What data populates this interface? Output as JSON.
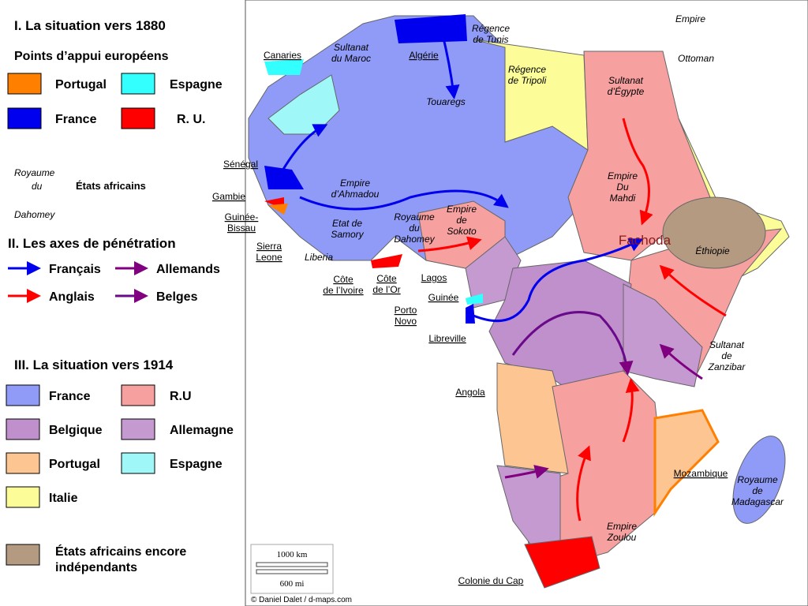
{
  "legend": {
    "situation_1880": {
      "title": "I. La situation vers 1880",
      "subtitle": "Points d’appui européens",
      "items": [
        {
          "label": "Portugal",
          "color": "#ff8000"
        },
        {
          "label": "Espagne",
          "color": "#33ffff"
        },
        {
          "label": "France",
          "color": "#0000ee"
        },
        {
          "label": "R. U.",
          "color": "#ff0000"
        }
      ],
      "african_states": {
        "example": [
          "Royaume",
          "du",
          "Dahomey"
        ],
        "label": "États africains"
      }
    },
    "axes": {
      "title": "II. Les axes de pénétration",
      "items": [
        {
          "label": "Français",
          "color": "#0000ee"
        },
        {
          "label": "Allemands",
          "color": "#800080"
        },
        {
          "label": "Anglais",
          "color": "#ff0000"
        },
        {
          "label": "Belges",
          "color": "#6a0a8a"
        }
      ]
    },
    "situation_1914": {
      "title": "III. La situation vers 1914",
      "items": [
        {
          "label": "France",
          "color": "#8f9bf7"
        },
        {
          "label": "R.U",
          "color": "#f7a0a0"
        },
        {
          "label": "Belgique",
          "color": "#c090cc"
        },
        {
          "label": "Allemagne",
          "color": "#c49ad0"
        },
        {
          "label": "Portugal",
          "color": "#fcc592"
        },
        {
          "label": "Espagne",
          "color": "#9ff7f7"
        },
        {
          "label": "Italie",
          "color": "#fcfc99"
        }
      ],
      "independent": {
        "lines": [
          "États africains encore",
          "indépendants"
        ],
        "color": "#b59a82"
      }
    }
  },
  "map_labels": [
    {
      "lines": [
        "Empire"
      ]
    },
    {
      "lines": [
        "Ottoman"
      ]
    },
    {
      "lines": [
        "Régence",
        "de Tunis"
      ]
    },
    {
      "lines": [
        "Sultanat",
        "du Maroc"
      ]
    },
    {
      "lines": [
        "Canaries"
      ]
    },
    {
      "lines": [
        "Algérie"
      ]
    },
    {
      "lines": [
        "Régence",
        "de Tripoli"
      ]
    },
    {
      "lines": [
        "Sultanat",
        "d’Égypte"
      ]
    },
    {
      "lines": [
        "Touaregs"
      ]
    },
    {
      "lines": [
        "Sénégal"
      ]
    },
    {
      "lines": [
        "Empire",
        "d’Ahmadou"
      ]
    },
    {
      "lines": [
        "Gambie"
      ]
    },
    {
      "lines": [
        "Guinée-",
        "Bissau"
      ]
    },
    {
      "lines": [
        "Etat de",
        "Samory"
      ]
    },
    {
      "lines": [
        "Royaume",
        "du",
        "Dahomey"
      ]
    },
    {
      "lines": [
        "Empire",
        "de",
        "Sokoto"
      ]
    },
    {
      "lines": [
        "Empire",
        "Du",
        "Mahdi"
      ]
    },
    {
      "lines": [
        "Fachoda"
      ]
    },
    {
      "lines": [
        "Éthiopie"
      ]
    },
    {
      "lines": [
        "Sierra",
        "Leone"
      ]
    },
    {
      "lines": [
        "Liberia"
      ]
    },
    {
      "lines": [
        "Côte",
        "de l’Ivoire"
      ]
    },
    {
      "lines": [
        "Côte",
        "de l’Or"
      ]
    },
    {
      "lines": [
        "Lagos"
      ]
    },
    {
      "lines": [
        "Porto",
        "Novo"
      ]
    },
    {
      "lines": [
        "Guinée"
      ]
    },
    {
      "lines": [
        "Libreville"
      ]
    },
    {
      "lines": [
        "Sultanat",
        "de",
        "Zanzibar"
      ]
    },
    {
      "lines": [
        "Angola"
      ]
    },
    {
      "lines": [
        "Mozambique"
      ]
    },
    {
      "lines": [
        "Royaume",
        "de",
        "Madagascar"
      ]
    },
    {
      "lines": [
        "Empire",
        "Zoulou"
      ]
    },
    {
      "lines": [
        "Colonie du Cap"
      ]
    }
  ],
  "scale": {
    "km": "1000 km",
    "mi": "600 mi"
  },
  "credit": "© Daniel Dalet / d-maps.com"
}
